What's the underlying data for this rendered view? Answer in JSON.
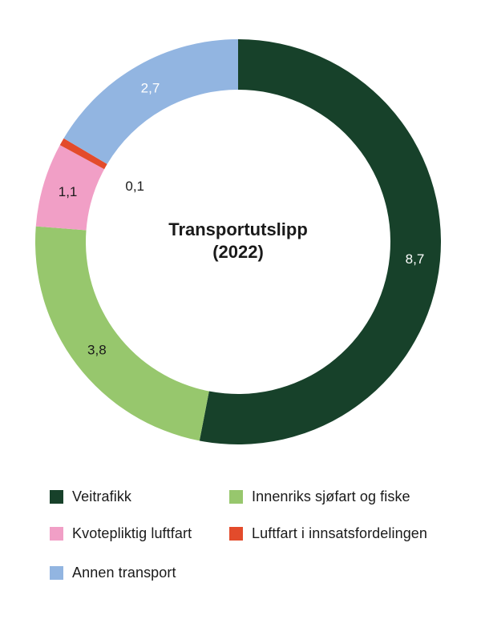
{
  "chart_data": {
    "type": "pie",
    "variant": "donut",
    "center_title": [
      "Transportutslipp",
      "(2022)"
    ],
    "legend_position": "bottom",
    "slices": [
      {
        "label": "Veitrafikk",
        "value": 8.7,
        "display": "8,7",
        "color": "#17412a"
      },
      {
        "label": "Innenriks sjøfart og fiske",
        "value": 3.8,
        "display": "3,8",
        "color": "#97c76d"
      },
      {
        "label": "Kvotepliktig luftfart",
        "value": 1.1,
        "display": "1,1",
        "color": "#f19fc6"
      },
      {
        "label": "Luftfart i innsatsfordelingen",
        "value": 0.1,
        "display": "0,1",
        "color": "#e34b2b"
      },
      {
        "label": "Annen transport",
        "value": 2.7,
        "display": "2,7",
        "color": "#92b5e1"
      }
    ]
  }
}
